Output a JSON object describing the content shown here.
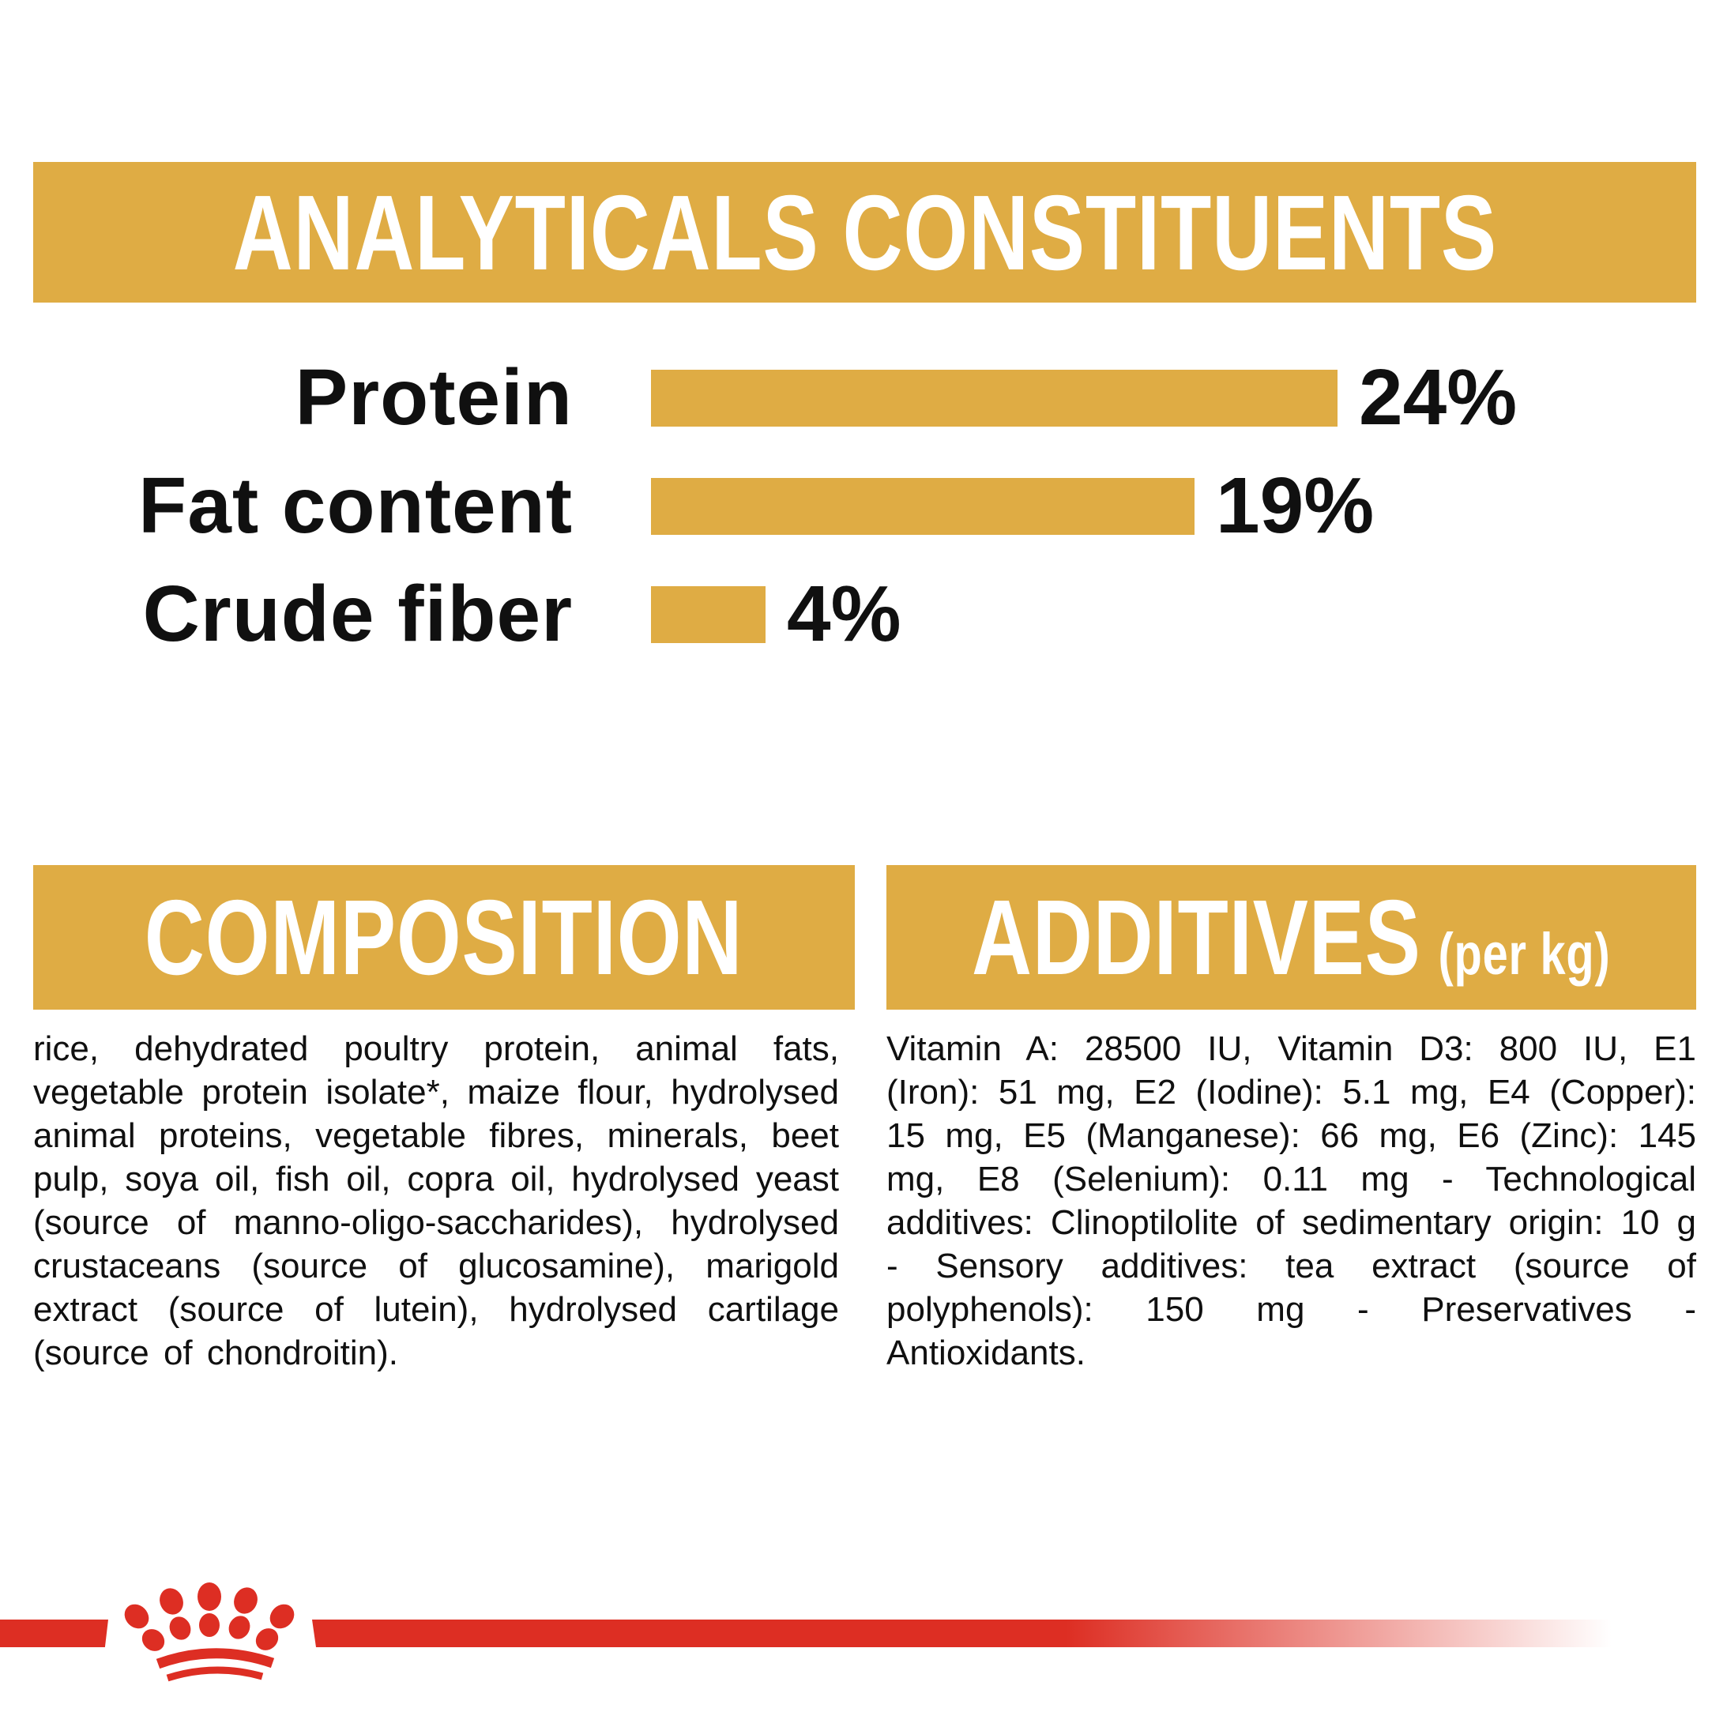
{
  "colors": {
    "gold": "#DFAC44",
    "red": "#DD2E23",
    "ink": "#101010",
    "white": "#FFFFFF"
  },
  "analyticals": {
    "title": "ANALYTICALS CONSTITUENTS",
    "rows": [
      {
        "label": "Protein",
        "value": "24%",
        "percent": 24
      },
      {
        "label": "Fat content",
        "value": "19%",
        "percent": 19
      },
      {
        "label": "Crude fiber",
        "value": "4%",
        "percent": 4
      }
    ]
  },
  "chart_data": {
    "type": "bar",
    "orientation": "horizontal",
    "categories": [
      "Protein",
      "Fat content",
      "Crude fiber"
    ],
    "values": [
      24,
      19,
      4
    ],
    "unit": "%",
    "title": "ANALYTICALS CONSTITUENTS",
    "xlabel": "",
    "ylabel": "",
    "xlim": [
      0,
      24
    ],
    "grid": false,
    "legend": false,
    "bar_color": "#DFAC44",
    "value_labels": [
      "24%",
      "19%",
      "4%"
    ]
  },
  "composition": {
    "title": "COMPOSITION",
    "body": "rice, dehydrated poultry protein, animal fats, vegetable protein isolate*, maize flour, hydrolysed animal proteins, vegetable fibres, minerals, beet pulp, soya oil, fish oil, copra oil, hydrolysed yeast (source of manno-oligo-saccharides), hydrolysed crustaceans (source of glucosamine), marigold extract (source of lutein), hydrolysed cartilage (source of chondroitin)."
  },
  "additives": {
    "title": "ADDITIVES",
    "title_suffix": "(per kg)",
    "body": "Vitamin A: 28500 IU, Vitamin D3: 800 IU, E1 (Iron): 51 mg, E2 (Iodine): 5.1 mg, E4 (Copper): 15 mg, E5 (Manganese): 66 mg, E6 (Zinc): 145 mg, E8 (Selenium): 0.11 mg - Technological additives: Clinoptilolite of sedimentary origin: 10 g - Sensory additives: tea extract (source of polyphenols): 150 mg - Preservatives - Antioxidants."
  },
  "footer": {
    "logo": "royal-canin-crown-logo"
  }
}
